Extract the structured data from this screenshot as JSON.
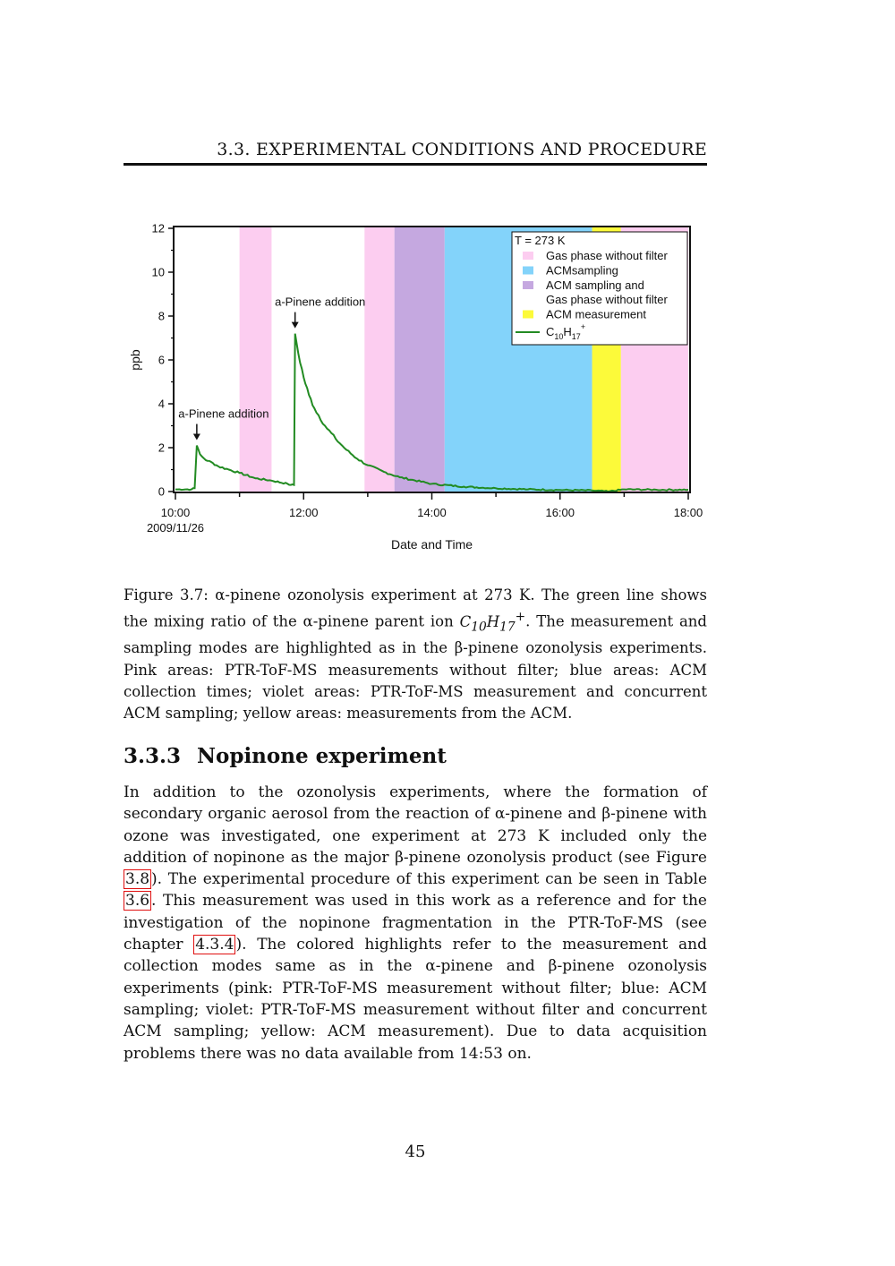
{
  "header": {
    "running_title": "3.3.  EXPERIMENTAL CONDITIONS AND PROCEDURE"
  },
  "chart_data": {
    "type": "line",
    "xlabel": "Date and Time",
    "ylabel": "ppb",
    "x_tick_labels": [
      "10:00",
      "12:00",
      "14:00",
      "16:00",
      "18:00"
    ],
    "x_date_label": "2009/11/26",
    "xlim": [
      "2009-11-26 10:00",
      "2009-11-26 18:05"
    ],
    "ylim": [
      0,
      12
    ],
    "y_ticks": [
      0,
      2,
      4,
      6,
      8,
      10,
      12
    ],
    "legend_title": "T = 273 K",
    "legend_position": "top-right",
    "legend": [
      {
        "label": "Gas phase without filter",
        "color": "#fccdf0",
        "kind": "patch"
      },
      {
        "label": "ACMsampling",
        "color": "#83d3fa",
        "kind": "patch"
      },
      {
        "label": "ACM sampling and",
        "label2": "Gas phase without filter",
        "color": "#c5a8e0",
        "kind": "patch"
      },
      {
        "label": "ACM measurement",
        "color": "#fcfa3a",
        "kind": "patch"
      },
      {
        "label": "C",
        "sub": "10",
        "mid": "H",
        "sub2": "17",
        "sup": "+",
        "color": "#228b22",
        "kind": "line"
      }
    ],
    "shaded_regions": [
      {
        "mode": "Gas phase without filter",
        "start": "11:00",
        "end": "11:30",
        "color": "#fccdf0"
      },
      {
        "mode": "Gas phase without filter",
        "start": "12:57",
        "end": "13:25",
        "color": "#fccdf0"
      },
      {
        "mode": "ACM sampling and Gas phase without filter",
        "start": "13:25",
        "end": "14:12",
        "color": "#c5a8e0"
      },
      {
        "mode": "ACMsampling",
        "start": "14:12",
        "end": "16:30",
        "color": "#83d3fa"
      },
      {
        "mode": "ACM measurement",
        "start": "16:30",
        "end": "16:57",
        "color": "#fcfa3a"
      },
      {
        "mode": "Gas phase without filter",
        "start": "16:57",
        "end": "18:00",
        "color": "#fccdf0"
      }
    ],
    "annotations": [
      {
        "text": "a-Pinene addition",
        "x": "10:20",
        "y": 2.1
      },
      {
        "text": "a-Pinene addition",
        "x": "11:52",
        "y": 7.2
      }
    ],
    "series": [
      {
        "name": "C10H17+",
        "color": "#228b22",
        "x": [
          "10:00",
          "10:15",
          "10:18",
          "10:20",
          "10:23",
          "10:27",
          "10:30",
          "10:35",
          "10:40",
          "10:50",
          "11:00",
          "11:15",
          "11:30",
          "11:45",
          "11:48",
          "11:51",
          "11:52",
          "11:55",
          "12:00",
          "12:05",
          "12:10",
          "12:20",
          "12:30",
          "12:40",
          "12:50",
          "13:00",
          "13:15",
          "13:30",
          "14:00",
          "14:30",
          "15:00",
          "15:30",
          "16:00",
          "16:30",
          "16:45",
          "17:00",
          "17:30",
          "18:00"
        ],
        "y": [
          0.1,
          0.1,
          0.15,
          2.1,
          1.7,
          1.5,
          1.4,
          1.3,
          1.15,
          1.0,
          0.85,
          0.6,
          0.5,
          0.35,
          0.3,
          0.3,
          7.2,
          6.3,
          5.2,
          4.4,
          3.8,
          3.0,
          2.4,
          1.9,
          1.5,
          1.2,
          0.9,
          0.65,
          0.35,
          0.22,
          0.15,
          0.1,
          0.07,
          0.05,
          0.0,
          0.1,
          0.08,
          0.08
        ]
      }
    ]
  },
  "caption": {
    "label": "Figure 3.7:",
    "p1": " α-pinene ozonolysis experiment at 273 K. The green line shows the mixing ratio of the α-pinene parent ion ",
    "ion_c": "C",
    "ion_c_sub": "10",
    "ion_h": "H",
    "ion_h_sub": "17",
    "ion_sup": "+",
    "p2": ". The measurement and sampling modes are highlighted as in the β-pinene ozonolysis experiments. Pink areas: PTR-ToF-MS measurements without filter; blue areas: ACM collection times; violet areas: PTR-ToF-MS measurement and concurrent ACM sampling; yellow areas: measurements from the ACM."
  },
  "section": {
    "number": "3.3.3",
    "title": "Nopinone experiment"
  },
  "body": {
    "t1": "In addition to the ozonolysis experiments, where the formation of secondary organic aerosol from the reaction of α-pinene and β-pinene with ozone was investigated, one experiment at 273 K included only the addition of nopinone as the major β-pinene ozonolysis product (see Figure ",
    "ref1": "3.8",
    "t2": "). The experimental procedure of this experiment can be seen in Table ",
    "ref2": "3.6",
    "t3": ". This measurement was used in this work as a reference and for the investigation of the nopinone fragmentation in the PTR-ToF-MS (see chapter ",
    "ref3": "4.3.4",
    "t4": "). The colored highlights refer to the measurement and collection modes same as in the α-pinene and β-pinene ozonolysis experiments (pink: PTR-ToF-MS measurement without filter; blue: ACM sampling; violet: PTR-ToF-MS measurement without filter and concurrent ACM sampling; yellow: ACM measurement). Due to data acquisition problems there was no data available from 14:53 on."
  },
  "footer": {
    "page_number": "45"
  }
}
